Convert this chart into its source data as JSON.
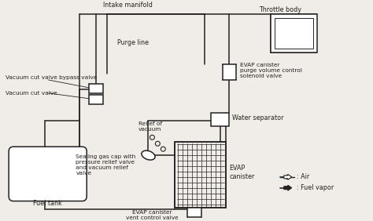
{
  "bg_color": "#f0ede8",
  "line_color": "#222222",
  "font_size": 5.8,
  "lw": 1.1,
  "labels": {
    "intake_manifold": "Intake manifold",
    "throttle_body": "Throttle body",
    "purge_line": "Purge line",
    "vcv_bypass": "Vacuum cut valve bypass valve",
    "vcv": "Vacuum cut valve",
    "evap_purge_solenoid": "EVAP canister\npurge volume control\nsolenoid valve",
    "water_separator": "Water separator",
    "relief_vacuum": "Relief of\nvacuum",
    "sealing_gas_cap": "Sealing gas cap with\npressure relief valve\nand vacuum relief\nvalve",
    "evap_vent": "EVAP canister\nvent control valve",
    "evap_canister": "EVAP\ncanister",
    "fuel_tank": "Fuel tank",
    "air_legend": ": Air",
    "fuel_vapor_legend": ": Fuel vapor"
  }
}
